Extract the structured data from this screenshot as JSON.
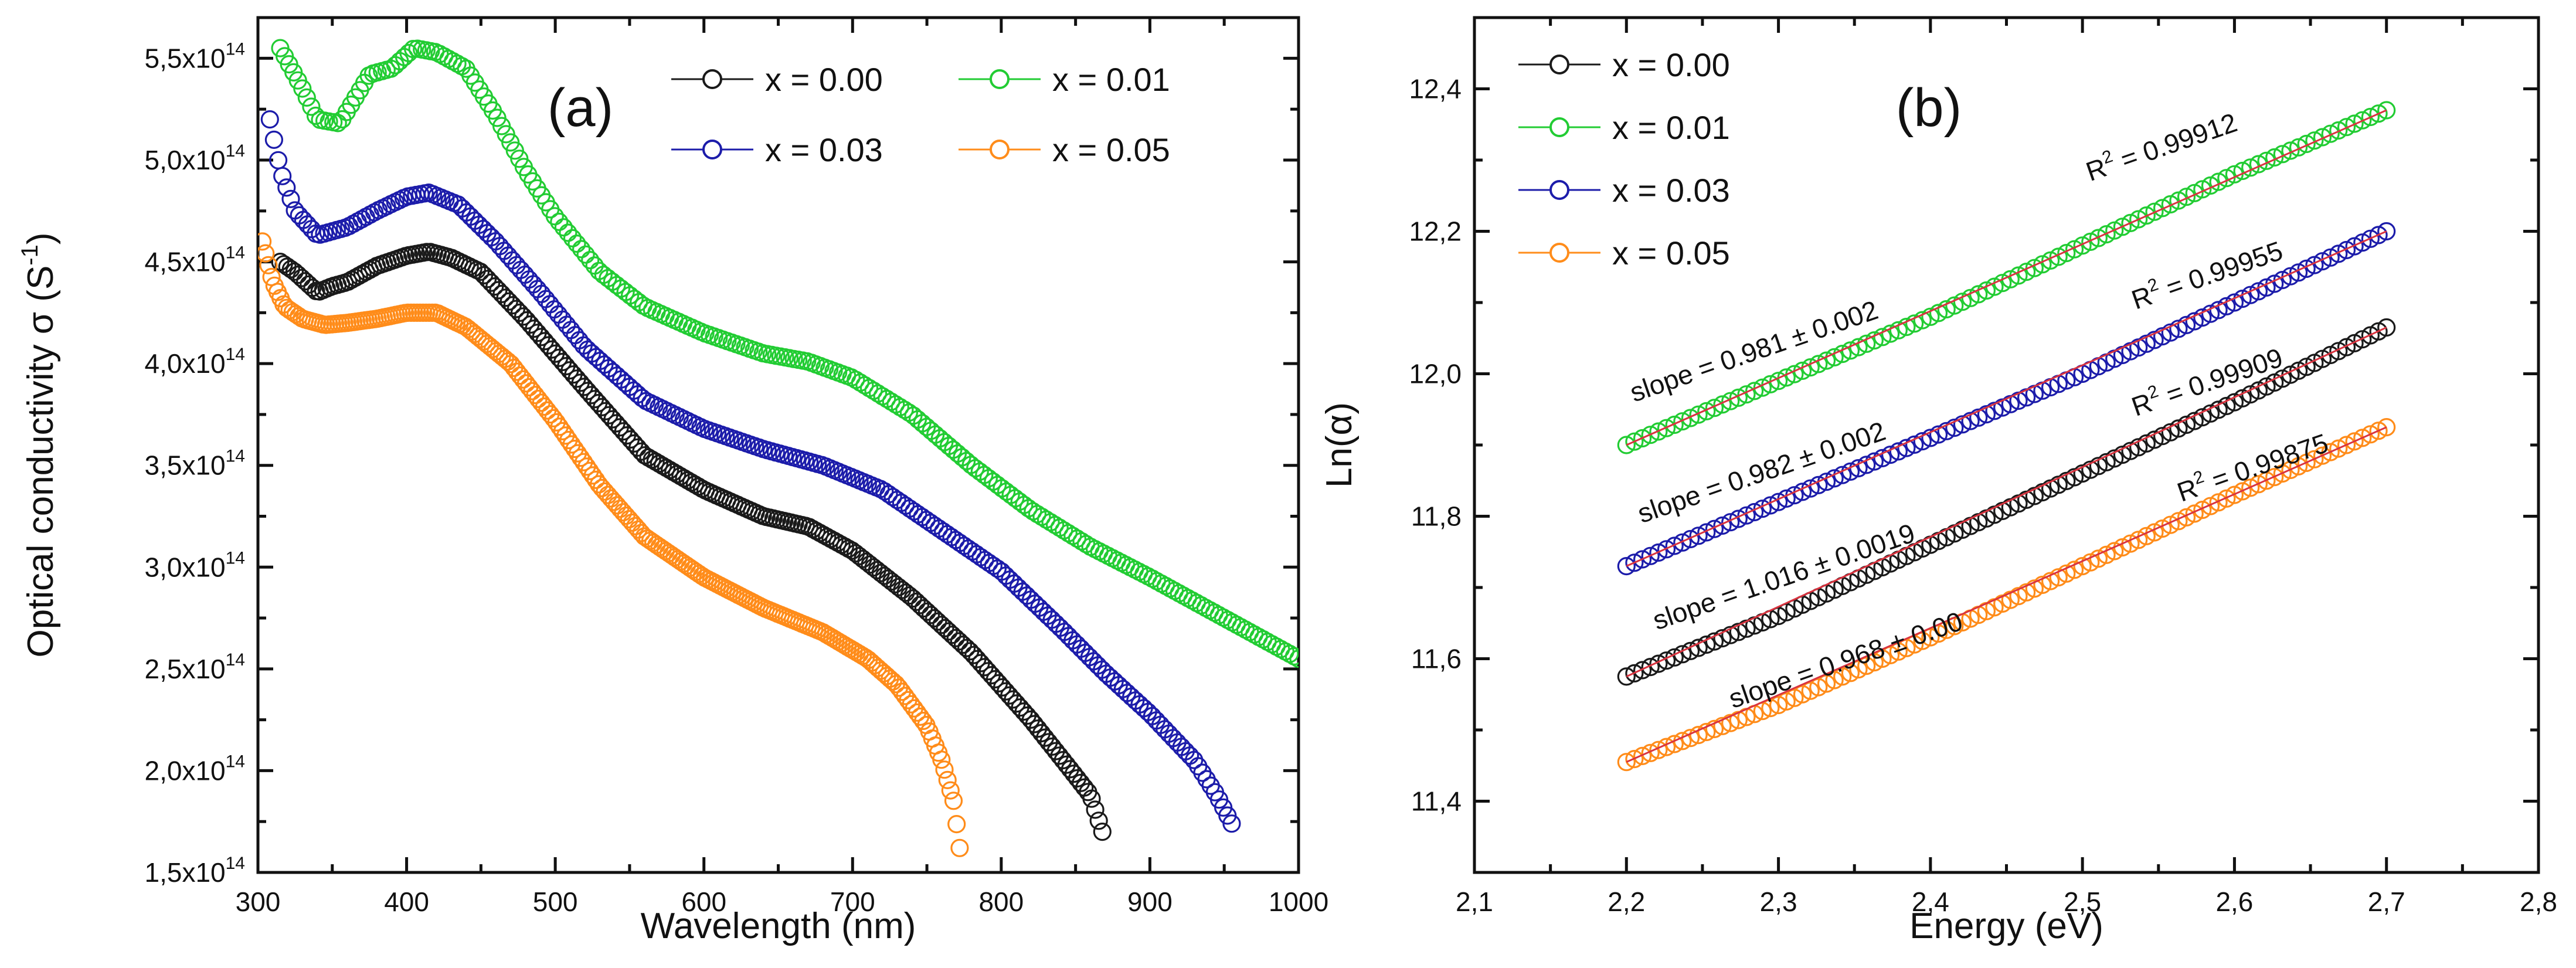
{
  "chart_data": [
    {
      "type": "scatter",
      "panel_label": "(a)",
      "xlabel": "Wavelength (nm)",
      "ylabel": "Optical conductivity σ (S",
      "ylabel_sup": "-1",
      "ylabel_close": ")",
      "xlim": [
        300,
        1000
      ],
      "ylim": [
        150000000000000.0,
        570000000000000.0
      ],
      "x_ticks": [
        "300",
        "400",
        "500",
        "600",
        "700",
        "800",
        "900",
        "1000"
      ],
      "y_ticks": [
        "1,5x10",
        "2,0x10",
        "2,5x10",
        "3,0x10",
        "3,5x10",
        "4,0x10",
        "4,5x10",
        "5,0x10",
        "5,5x10"
      ],
      "y_tick_exponent": "14",
      "legend_position": "top-right",
      "series": [
        {
          "name": "x = 0.00",
          "color": "#1a1a1a",
          "x": [
            315,
            325,
            340,
            350,
            360,
            380,
            400,
            415,
            430,
            450,
            480,
            520,
            560,
            600,
            640,
            670,
            700,
            740,
            780,
            820,
            845,
            860,
            868
          ],
          "y": [
            450000000000000.0,
            445000000000000.0,
            435000000000000.0,
            438000000000000.0,
            440000000000000.0,
            448000000000000.0,
            453000000000000.0,
            455000000000000.0,
            452000000000000.0,
            445000000000000.0,
            422000000000000.0,
            388000000000000.0,
            355000000000000.0,
            338000000000000.0,
            325000000000000.0,
            320000000000000.0,
            308000000000000.0,
            285000000000000.0,
            258000000000000.0,
            225000000000000.0,
            202000000000000.0,
            188000000000000.0,
            170000000000000.0
          ]
        },
        {
          "name": "x = 0.01",
          "color": "#22cc33",
          "x": [
            315,
            330,
            340,
            355,
            365,
            375,
            390,
            405,
            420,
            440,
            460,
            480,
            500,
            530,
            560,
            600,
            640,
            670,
            700,
            740,
            780,
            820,
            860,
            900,
            950,
            1000
          ],
          "y": [
            555000000000000.0,
            535000000000000.0,
            520000000000000.0,
            518000000000000.0,
            530000000000000.0,
            542000000000000.0,
            545000000000000.0,
            555000000000000.0,
            553000000000000.0,
            545000000000000.0,
            522000000000000.0,
            495000000000000.0,
            472000000000000.0,
            445000000000000.0,
            428000000000000.0,
            415000000000000.0,
            405000000000000.0,
            401000000000000.0,
            393000000000000.0,
            375000000000000.0,
            350000000000000.0,
            328000000000000.0,
            310000000000000.0,
            295000000000000.0,
            275000000000000.0,
            255000000000000.0
          ]
        },
        {
          "name": "x = 0.03",
          "color": "#1c1caa",
          "x": [
            308,
            315,
            325,
            340,
            360,
            380,
            400,
            415,
            435,
            460,
            490,
            520,
            560,
            600,
            640,
            680,
            720,
            760,
            800,
            840,
            870,
            900,
            930,
            945,
            955
          ],
          "y": [
            520000000000000.0,
            495000000000000.0,
            475000000000000.0,
            463000000000000.0,
            467000000000000.0,
            475000000000000.0,
            482000000000000.0,
            484000000000000.0,
            478000000000000.0,
            460000000000000.0,
            435000000000000.0,
            408000000000000.0,
            382000000000000.0,
            368000000000000.0,
            358000000000000.0,
            350000000000000.0,
            338000000000000.0,
            318000000000000.0,
            298000000000000.0,
            270000000000000.0,
            248000000000000.0,
            228000000000000.0,
            205000000000000.0,
            188000000000000.0,
            174000000000000.0
          ]
        },
        {
          "name": "x = 0.05",
          "color": "#ff8c1a",
          "x": [
            303,
            310,
            318,
            330,
            345,
            360,
            380,
            400,
            420,
            440,
            470,
            500,
            530,
            560,
            600,
            640,
            680,
            710,
            730,
            750,
            760,
            768,
            772
          ],
          "y": [
            460000000000000.0,
            440000000000000.0,
            428000000000000.0,
            422000000000000.0,
            419000000000000.0,
            420000000000000.0,
            422000000000000.0,
            425000000000000.0,
            425000000000000.0,
            418000000000000.0,
            400000000000000.0,
            372000000000000.0,
            340000000000000.0,
            315000000000000.0,
            295000000000000.0,
            280000000000000.0,
            268000000000000.0,
            255000000000000.0,
            242000000000000.0,
            222000000000000.0,
            205000000000000.0,
            185000000000000.0,
            162000000000000.0
          ]
        }
      ]
    },
    {
      "type": "scatter",
      "panel_label": "(b)",
      "xlabel": "Energy (eV)",
      "ylabel": "Ln(α)",
      "xlim": [
        2.1,
        2.8
      ],
      "ylim": [
        11.3,
        12.5
      ],
      "x_ticks": [
        "2,1",
        "2,2",
        "2,3",
        "2,4",
        "2,5",
        "2,6",
        "2,7",
        "2,8"
      ],
      "y_ticks": [
        "11,4",
        "11,6",
        "11,8",
        "12,0",
        "12,2",
        "12,4"
      ],
      "legend_position": "top-left",
      "series": [
        {
          "name": "x = 0.00",
          "color": "#1a1a1a",
          "x": [
            2.2,
            2.3,
            2.4,
            2.5,
            2.6,
            2.7
          ],
          "y": [
            11.575,
            11.66,
            11.76,
            11.86,
            11.96,
            12.065
          ]
        },
        {
          "name": "x = 0.01",
          "color": "#22cc33",
          "x": [
            2.2,
            2.3,
            2.4,
            2.5,
            2.6,
            2.7
          ],
          "y": [
            11.9,
            11.99,
            12.08,
            12.18,
            12.28,
            12.37
          ]
        },
        {
          "name": "x = 0.03",
          "color": "#1c1caa",
          "x": [
            2.2,
            2.3,
            2.4,
            2.5,
            2.6,
            2.7
          ],
          "y": [
            11.73,
            11.82,
            11.91,
            12.0,
            12.1,
            12.2
          ]
        },
        {
          "name": "x = 0.05",
          "color": "#ff8c1a",
          "x": [
            2.2,
            2.3,
            2.4,
            2.5,
            2.6,
            2.7
          ],
          "y": [
            11.455,
            11.535,
            11.63,
            11.73,
            11.83,
            11.925
          ]
        }
      ],
      "annotations": [
        {
          "text": "slope = 0.981 ± 0.002",
          "series": 1,
          "x": 2.205,
          "y": 11.96,
          "rotate": -19
        },
        {
          "text": "slope = 0.982 ± 0.002",
          "series": 2,
          "x": 2.21,
          "y": 11.79,
          "rotate": -19
        },
        {
          "text": "slope = 1.016 ± 0.0019",
          "series": 0,
          "x": 2.22,
          "y": 11.64,
          "rotate": -19
        },
        {
          "text": "slope = 0.968 ± 0.00",
          "series": 3,
          "x": 2.27,
          "y": 11.53,
          "rotate": -19
        },
        {
          "text": "R",
          "sup": "2",
          "tail": " = 0.99912",
          "x": 2.505,
          "y": 12.27,
          "rotate": -19
        },
        {
          "text": "R",
          "sup": "2",
          "tail": " = 0.99955",
          "x": 2.535,
          "y": 12.09,
          "rotate": -19
        },
        {
          "text": "R",
          "sup": "2",
          "tail": " = 0.99909",
          "x": 2.535,
          "y": 11.94,
          "rotate": -19
        },
        {
          "text": "R",
          "sup": "2",
          "tail": " = 0.99875",
          "x": 2.565,
          "y": 11.82,
          "rotate": -19
        }
      ]
    }
  ]
}
